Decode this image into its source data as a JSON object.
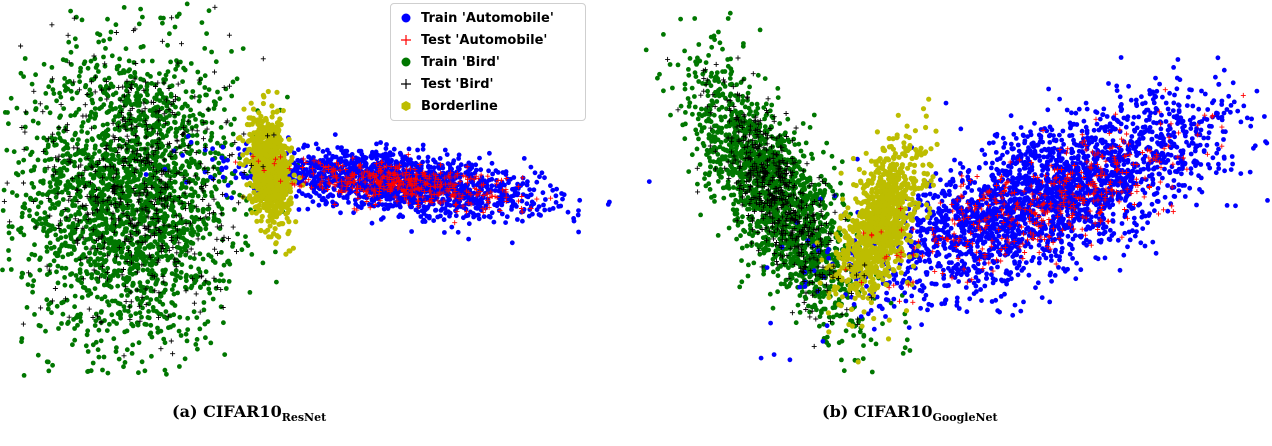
{
  "legend": [
    {
      "label": "Train 'Automobile'",
      "color": "#0000ff",
      "marker": "circle"
    },
    {
      "label": "Test 'Automobile'",
      "color": "#ff0000",
      "marker": "plus"
    },
    {
      "label": "Train 'Bird'",
      "color": "#007700",
      "marker": "circle"
    },
    {
      "label": "Test 'Bird'",
      "color": "#000000",
      "marker": "plus"
    },
    {
      "label": "Borderline",
      "color": "#bdbd00",
      "marker": "hexagon"
    }
  ],
  "captions": {
    "a": {
      "prefix": "(a) CIFAR10",
      "sub": "ResNet"
    },
    "b": {
      "prefix": "(b) CIFAR10",
      "sub": "GoogleNet"
    }
  },
  "chart_data": [
    {
      "type": "scatter",
      "title": "",
      "xlabel": "",
      "ylabel": "",
      "axes_visible": false,
      "grid": false,
      "legend_placement": "top-right",
      "clusters": [
        {
          "series": "Train 'Bird'",
          "cx": -6,
          "cy": 0,
          "sx": 1.8,
          "sy": 2.6,
          "rho": 0.0,
          "n": 2200
        },
        {
          "series": "Test 'Bird'",
          "cx": -5.8,
          "cy": 0.4,
          "sx": 1.6,
          "sy": 2.4,
          "rho": 0.0,
          "n": 550
        },
        {
          "series": "Borderline",
          "cx": -1.2,
          "cy": 1.0,
          "sx": 0.35,
          "sy": 0.9,
          "rho": -0.3,
          "n": 900
        },
        {
          "series": "Train 'Automobile'",
          "cx": 3.2,
          "cy": 0.5,
          "sx": 2.4,
          "sy": 0.55,
          "rho": -0.5,
          "n": 1600
        },
        {
          "series": "Test 'Automobile'",
          "cx": 3.2,
          "cy": 0.5,
          "sx": 2.0,
          "sy": 0.4,
          "rho": -0.5,
          "n": 420
        }
      ]
    },
    {
      "type": "scatter",
      "title": "",
      "xlabel": "",
      "ylabel": "",
      "axes_visible": false,
      "grid": false,
      "legend_placement": "none",
      "clusters": [
        {
          "series": "Train 'Bird'",
          "cx": -4.2,
          "cy": 0.2,
          "sx": 0.9,
          "sy": 2.0,
          "rho": -0.75,
          "n": 1700
        },
        {
          "series": "Test 'Bird'",
          "cx": -4.2,
          "cy": 0.3,
          "sx": 0.7,
          "sy": 1.7,
          "rho": -0.75,
          "n": 500
        },
        {
          "series": "Borderline",
          "cx": -1.9,
          "cy": -0.6,
          "sx": 0.45,
          "sy": 1.25,
          "rho": 0.55,
          "n": 1000
        },
        {
          "series": "Train 'Automobile'",
          "cx": 1.9,
          "cy": 0.3,
          "sx": 2.0,
          "sy": 1.6,
          "rho": 0.7,
          "n": 2400
        },
        {
          "series": "Test 'Automobile'",
          "cx": 1.9,
          "cy": 0.2,
          "sx": 1.6,
          "sy": 1.2,
          "rho": 0.7,
          "n": 420
        }
      ]
    }
  ]
}
